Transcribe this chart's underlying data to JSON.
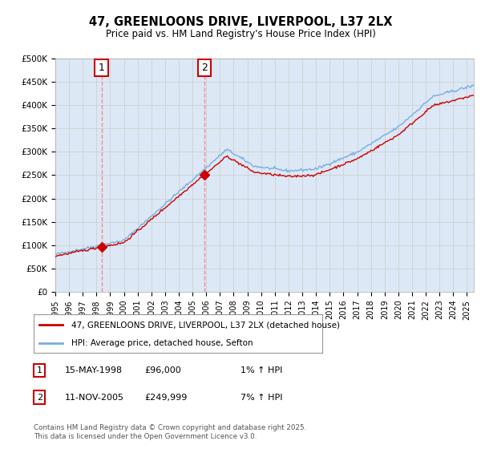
{
  "title": "47, GREENLOONS DRIVE, LIVERPOOL, L37 2LX",
  "subtitle": "Price paid vs. HM Land Registry's House Price Index (HPI)",
  "ylabel_ticks": [
    "£0",
    "£50K",
    "£100K",
    "£150K",
    "£200K",
    "£250K",
    "£300K",
    "£350K",
    "£400K",
    "£450K",
    "£500K"
  ],
  "ytick_values": [
    0,
    50000,
    100000,
    150000,
    200000,
    250000,
    300000,
    350000,
    400000,
    450000,
    500000
  ],
  "ylim": [
    0,
    500000
  ],
  "sale1_t": 1998.367,
  "sale1_price": 96000,
  "sale2_t": 2005.863,
  "sale2_price": 249999,
  "line_color_red": "#cc0000",
  "line_color_blue": "#7aade0",
  "vline_color": "#ff8888",
  "annotation_border_color": "#cc0000",
  "annotation_text_color": "#000000",
  "annotation_bg_color": "#ffffff",
  "grid_color": "#cccccc",
  "chart_bg_color": "#dce8f5",
  "legend_label_red": "47, GREENLOONS DRIVE, LIVERPOOL, L37 2LX (detached house)",
  "legend_label_blue": "HPI: Average price, detached house, Sefton",
  "table_row1": [
    "1",
    "15-MAY-1998",
    "£96,000",
    "1% ↑ HPI"
  ],
  "table_row2": [
    "2",
    "11-NOV-2005",
    "£249,999",
    "7% ↑ HPI"
  ],
  "footnote": "Contains HM Land Registry data © Crown copyright and database right 2025.\nThis data is licensed under the Open Government Licence v3.0.",
  "xmin": 1995.0,
  "xmax": 2025.5
}
